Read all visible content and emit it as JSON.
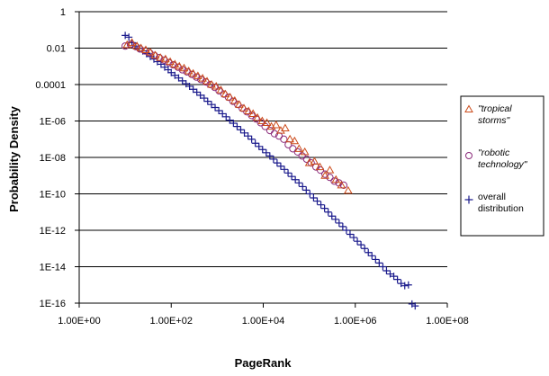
{
  "chart_data": {
    "type": "scatter",
    "xlabel": "PageRank",
    "ylabel": "Probability Density",
    "x_scale": "log",
    "y_scale": "log",
    "xlim": [
      1,
      100000000
    ],
    "ylim": [
      1e-16,
      1
    ],
    "x_ticks": [
      1,
      100,
      10000,
      1000000,
      100000000
    ],
    "x_tick_labels": [
      "1.00E+00",
      "1.00E+02",
      "1.00E+04",
      "1.00E+06",
      "1.00E+08"
    ],
    "y_ticks": [
      1,
      0.01,
      0.0001,
      1e-06,
      1e-08,
      1e-10,
      1e-12,
      1e-14,
      1e-16
    ],
    "y_tick_labels": [
      "1",
      "0.01",
      "0.0001",
      "1E-06",
      "1E-08",
      "1E-10",
      "1E-12",
      "1E-14",
      "1E-16"
    ],
    "grid": "horizontal major gridlines",
    "legend_position": "right",
    "series": [
      {
        "name": "\"tropical storms\"",
        "marker": "triangle",
        "color": "#cc4c1c",
        "x": [
          11,
          14,
          18,
          22,
          28,
          35,
          45,
          58,
          75,
          95,
          120,
          150,
          190,
          240,
          300,
          380,
          480,
          600,
          750,
          950,
          1200,
          1500,
          1900,
          2400,
          3000,
          3800,
          4800,
          6000,
          7500,
          9500,
          12000,
          15000,
          19000,
          24000,
          30000,
          38000,
          48000,
          60000,
          80000,
          100000,
          130000,
          170000,
          220000,
          280000,
          380000,
          500000,
          700000
        ],
        "y": [
          0.015,
          0.02,
          0.013,
          0.01,
          0.008,
          0.006,
          0.004,
          0.003,
          0.0025,
          0.0018,
          0.0013,
          0.001,
          0.0008,
          0.00055,
          0.0004,
          0.0003,
          0.00022,
          0.00015,
          0.0001,
          8e-05,
          5e-05,
          3e-05,
          2e-05,
          1.3e-05,
          8e-06,
          5e-06,
          3.5e-06,
          2.5e-06,
          1.5e-06,
          1e-06,
          8e-07,
          5e-07,
          6e-07,
          3e-07,
          4e-07,
          1e-07,
          8e-08,
          3e-08,
          2e-08,
          5e-09,
          6e-09,
          3e-09,
          1e-09,
          2e-09,
          6e-10,
          3e-10,
          1.5e-10
        ]
      },
      {
        "name": "\"robotic technology\"",
        "marker": "circle",
        "color": "#8a2a7a",
        "x": [
          10,
          13,
          17,
          21,
          27,
          34,
          43,
          55,
          70,
          88,
          110,
          140,
          175,
          220,
          280,
          350,
          440,
          560,
          700,
          880,
          1100,
          1400,
          1750,
          2200,
          2800,
          3500,
          4400,
          5600,
          7000,
          8800,
          11000,
          14000,
          17500,
          22000,
          28000,
          35000,
          44000,
          56000,
          70000,
          88000,
          110000,
          140000,
          175000,
          220000,
          280000,
          350000,
          440000,
          560000
        ],
        "y": [
          0.013,
          0.016,
          0.012,
          0.009,
          0.007,
          0.0055,
          0.004,
          0.003,
          0.0022,
          0.0016,
          0.0012,
          0.0009,
          0.00065,
          0.0005,
          0.00036,
          0.00026,
          0.00019,
          0.00014,
          0.0001,
          7e-05,
          4.5e-05,
          3e-05,
          2e-05,
          1.2e-05,
          8e-06,
          5e-06,
          3.2e-06,
          2e-06,
          1.3e-06,
          8e-07,
          5e-07,
          3e-07,
          2e-07,
          1.5e-07,
          1e-07,
          5e-08,
          3e-08,
          2e-08,
          1.2e-08,
          8e-09,
          5e-09,
          3e-09,
          2e-09,
          1.2e-09,
          8e-10,
          5e-10,
          4e-10,
          3e-10
        ]
      },
      {
        "name": "overall distribution",
        "marker": "plus",
        "color": "#1a1a8c",
        "x": [
          10,
          12,
          14,
          17,
          20,
          24,
          29,
          35,
          42,
          50,
          60,
          72,
          86,
          100,
          120,
          145,
          175,
          210,
          250,
          300,
          360,
          430,
          520,
          620,
          750,
          900,
          1080,
          1300,
          1560,
          1870,
          2250,
          2700,
          3240,
          3890,
          4670,
          5600,
          6720,
          8060,
          9670,
          11600,
          13900,
          16700,
          20000,
          24000,
          28800,
          34600,
          41500,
          49800,
          59800,
          71700,
          86000,
          103000,
          124000,
          149000,
          179000,
          215000,
          258000,
          310000,
          372000,
          446000,
          535000,
          642000,
          770000,
          924000,
          1110000,
          1330000,
          1600000,
          1920000,
          2300000,
          2760000,
          3310000,
          3980000,
          4770000,
          5730000,
          6870000,
          8250000,
          9900000,
          11900000,
          14300000,
          17100000,
          20000000
        ],
        "y": [
          0.05,
          0.04,
          0.02,
          0.013,
          0.01,
          0.007,
          0.005,
          0.0035,
          0.0025,
          0.0018,
          0.0013,
          0.0009,
          0.00065,
          0.00045,
          0.00032,
          0.00023,
          0.00016,
          0.00011,
          8e-05,
          5.5e-05,
          3.8e-05,
          2.6e-05,
          1.8e-05,
          1.2e-05,
          8e-06,
          5.5e-06,
          3.7e-06,
          2.5e-06,
          1.7e-06,
          1.1e-06,
          7.5e-07,
          5e-07,
          3.3e-07,
          2.2e-07,
          1.5e-07,
          1e-07,
          6e-08,
          4e-08,
          2.7e-08,
          1.8e-08,
          1.2e-08,
          8e-09,
          5e-09,
          3.3e-09,
          2.2e-09,
          1.4e-09,
          9e-10,
          6e-10,
          4e-10,
          2.5e-10,
          1.6e-10,
          1e-10,
          6e-11,
          4e-11,
          2.5e-11,
          1.6e-11,
          1e-11,
          6e-12,
          4e-12,
          2.5e-12,
          1.6e-12,
          1e-12,
          6e-13,
          4e-13,
          2.5e-13,
          1.6e-13,
          1e-13,
          6e-14,
          4e-14,
          2.5e-14,
          1.6e-14,
          1e-14,
          6e-15,
          4e-15,
          3e-15,
          2e-15,
          1.2e-15,
          9e-16,
          1e-15,
          9e-17,
          7e-17
        ]
      }
    ],
    "legend": [
      {
        "line1": "\"tropical",
        "line2": "storms\""
      },
      {
        "line1": "\"robotic",
        "line2": "technology\""
      },
      {
        "line1": "overall",
        "line2": "distribution"
      }
    ]
  }
}
